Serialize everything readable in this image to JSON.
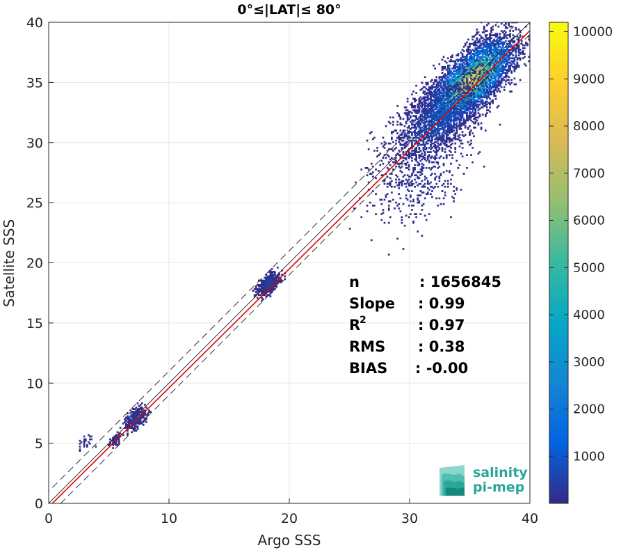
{
  "chart_data": {
    "type": "heatmap",
    "title": "0°≤|LAT|≤ 80°",
    "xlabel": "Argo SSS",
    "ylabel": "Satellite SSS",
    "xlim": [
      0,
      40
    ],
    "ylim": [
      0,
      40
    ],
    "xticks": [
      "0",
      "10",
      "20",
      "30",
      "40"
    ],
    "yticks": [
      "0",
      "5",
      "10",
      "15",
      "20",
      "25",
      "30",
      "35",
      "40"
    ],
    "grid": true,
    "colorbar": {
      "range": [
        0,
        10200
      ],
      "ticks": [
        "1000",
        "2000",
        "3000",
        "4000",
        "5000",
        "6000",
        "7000",
        "8000",
        "9000",
        "10000"
      ],
      "colormap": "parula"
    },
    "lines": [
      {
        "name": "one-to-one",
        "color": "#333333",
        "style": "solid",
        "slope": 1,
        "intercept": 0
      },
      {
        "name": "regression",
        "color": "#e00000",
        "style": "solid",
        "slope": 0.99,
        "intercept": -0.3
      },
      {
        "name": "upper-bound",
        "color": "#333333",
        "style": "dashed",
        "slope": 1,
        "intercept": 1
      },
      {
        "name": "lower-bound",
        "color": "#333333",
        "style": "dashed",
        "slope": 1,
        "intercept": -1
      }
    ],
    "clusters": [
      {
        "x": 35,
        "y": 35,
        "sx": 2.2,
        "sy": 2.2,
        "n": 4200,
        "peak": 10000
      },
      {
        "x": 32.5,
        "y": 32,
        "sx": 2.6,
        "sy": 2.6,
        "n": 1600,
        "peak": 1200
      },
      {
        "x": 31,
        "y": 27,
        "sx": 2.2,
        "sy": 3,
        "n": 350,
        "peak": 400
      },
      {
        "x": 18.2,
        "y": 18.2,
        "sx": 0.5,
        "sy": 0.6,
        "n": 500,
        "peak": 900
      },
      {
        "x": 7.2,
        "y": 7,
        "sx": 0.5,
        "sy": 0.7,
        "n": 320,
        "peak": 700
      },
      {
        "x": 5.4,
        "y": 5.2,
        "sx": 0.25,
        "sy": 0.35,
        "n": 90,
        "peak": 500
      },
      {
        "x": 3,
        "y": 5,
        "sx": 0.3,
        "sy": 0.6,
        "n": 25,
        "peak": 300
      }
    ],
    "stats": [
      {
        "label": "n",
        "value": ": 1656845"
      },
      {
        "label": "Slope",
        "value": ": 0.99"
      },
      {
        "label": "R",
        "sup": "2",
        "value": ": 0.97"
      },
      {
        "label": "RMS",
        "value": ": 0.38"
      },
      {
        "label": "BIAS",
        "value": ": -0.00"
      }
    ]
  },
  "logo": {
    "line1": "salinity",
    "line2": "pi-mep"
  }
}
